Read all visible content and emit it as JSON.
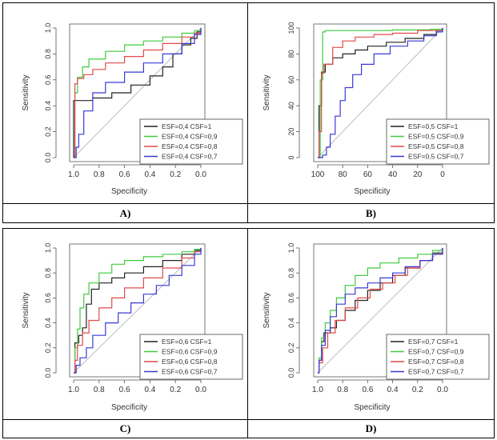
{
  "panels": [
    {
      "caption": "A)"
    },
    {
      "caption": "B)"
    },
    {
      "caption": "C)"
    },
    {
      "caption": "D)"
    }
  ],
  "colors": {
    "black": "#222222",
    "green": "#3fcc3f",
    "red": "#e24a4a",
    "blue": "#3a3ad6",
    "diagonal": "#bdbdbd"
  },
  "chart_data": [
    {
      "type": "line",
      "title": "",
      "xlabel": "Specificity",
      "ylabel": "Sensitivity",
      "xlim": [
        1.0,
        0.0
      ],
      "ylim": [
        0.0,
        1.0
      ],
      "xticks": [
        "1.0",
        "0.8",
        "0.6",
        "0.4",
        "0.2",
        "0.0"
      ],
      "yticks": [
        "0.0",
        "0.2",
        "0.4",
        "0.6",
        "0.8",
        "1.0"
      ],
      "legend_position": "bottom-right",
      "series": [
        {
          "name": "ESF=0,4 CSF=1",
          "color": "#222222",
          "points": [
            [
              1.0,
              0.0
            ],
            [
              1.0,
              0.44
            ],
            [
              0.9,
              0.44
            ],
            [
              0.85,
              0.46
            ],
            [
              0.7,
              0.5
            ],
            [
              0.55,
              0.56
            ],
            [
              0.4,
              0.63
            ],
            [
              0.3,
              0.7
            ],
            [
              0.22,
              0.8
            ],
            [
              0.15,
              0.87
            ],
            [
              0.08,
              0.92
            ],
            [
              0.03,
              0.97
            ],
            [
              0.0,
              1.0
            ]
          ]
        },
        {
          "name": "ESF=0,4 CSF=0,9",
          "color": "#3fcc3f",
          "points": [
            [
              1.0,
              0.0
            ],
            [
              0.99,
              0.5
            ],
            [
              0.97,
              0.62
            ],
            [
              0.93,
              0.7
            ],
            [
              0.88,
              0.76
            ],
            [
              0.75,
              0.82
            ],
            [
              0.6,
              0.87
            ],
            [
              0.45,
              0.9
            ],
            [
              0.3,
              0.93
            ],
            [
              0.15,
              0.96
            ],
            [
              0.05,
              0.98
            ],
            [
              0.0,
              1.0
            ]
          ]
        },
        {
          "name": "ESF=0,4 CSF=0,8",
          "color": "#e24a4a",
          "points": [
            [
              1.0,
              0.0
            ],
            [
              0.99,
              0.57
            ],
            [
              0.97,
              0.61
            ],
            [
              0.92,
              0.64
            ],
            [
              0.85,
              0.68
            ],
            [
              0.75,
              0.73
            ],
            [
              0.6,
              0.78
            ],
            [
              0.45,
              0.83
            ],
            [
              0.3,
              0.88
            ],
            [
              0.15,
              0.93
            ],
            [
              0.05,
              0.96
            ],
            [
              0.0,
              1.0
            ]
          ]
        },
        {
          "name": "ESF=0,4 CSF=0,7",
          "color": "#3a3ad6",
          "points": [
            [
              1.0,
              0.0
            ],
            [
              0.98,
              0.08
            ],
            [
              0.96,
              0.18
            ],
            [
              0.92,
              0.36
            ],
            [
              0.85,
              0.5
            ],
            [
              0.75,
              0.58
            ],
            [
              0.6,
              0.66
            ],
            [
              0.45,
              0.73
            ],
            [
              0.3,
              0.8
            ],
            [
              0.15,
              0.88
            ],
            [
              0.05,
              0.95
            ],
            [
              0.0,
              1.0
            ]
          ]
        }
      ]
    },
    {
      "type": "line",
      "title": "",
      "xlabel": "Specificity",
      "ylabel": "Sensitivity",
      "xlim": [
        100,
        0
      ],
      "ylim": [
        0,
        100
      ],
      "xticks": [
        "100",
        "80",
        "60",
        "40",
        "20",
        "0"
      ],
      "yticks": [
        "0",
        "20",
        "40",
        "60",
        "80",
        "100"
      ],
      "legend_position": "bottom-right",
      "series": [
        {
          "name": "ESF=0,5 CSF=1",
          "color": "#222222",
          "points": [
            [
              100,
              0
            ],
            [
              99,
              40
            ],
            [
              97,
              66
            ],
            [
              94,
              72
            ],
            [
              88,
              77
            ],
            [
              80,
              80
            ],
            [
              70,
              83
            ],
            [
              60,
              86
            ],
            [
              45,
              89
            ],
            [
              30,
              92
            ],
            [
              15,
              95
            ],
            [
              5,
              98
            ],
            [
              0,
              100
            ]
          ]
        },
        {
          "name": "ESF=0,5 CSF=0,9",
          "color": "#3fcc3f",
          "points": [
            [
              100,
              0
            ],
            [
              98,
              60
            ],
            [
              96,
              97
            ],
            [
              94,
              98
            ],
            [
              70,
              98
            ],
            [
              40,
              98.5
            ],
            [
              10,
              99
            ],
            [
              0,
              100
            ]
          ]
        },
        {
          "name": "ESF=0,5 CSF=0,8",
          "color": "#e24a4a",
          "points": [
            [
              100,
              0
            ],
            [
              99,
              20
            ],
            [
              97,
              65
            ],
            [
              95,
              72
            ],
            [
              88,
              85
            ],
            [
              80,
              90
            ],
            [
              70,
              93
            ],
            [
              55,
              95
            ],
            [
              40,
              96
            ],
            [
              20,
              98
            ],
            [
              0,
              100
            ]
          ]
        },
        {
          "name": "ESF=0,5 CSF=0,7",
          "color": "#3a3ad6",
          "points": [
            [
              100,
              0
            ],
            [
              96,
              2
            ],
            [
              93,
              8
            ],
            [
              90,
              18
            ],
            [
              86,
              32
            ],
            [
              82,
              44
            ],
            [
              78,
              54
            ],
            [
              72,
              64
            ],
            [
              65,
              72
            ],
            [
              55,
              80
            ],
            [
              42,
              86
            ],
            [
              28,
              90
            ],
            [
              15,
              94
            ],
            [
              5,
              97
            ],
            [
              0,
              100
            ]
          ]
        }
      ]
    },
    {
      "type": "line",
      "title": "",
      "xlabel": "Specificity",
      "ylabel": "Sensitivity",
      "xlim": [
        1.0,
        0.0
      ],
      "ylim": [
        0.0,
        1.0
      ],
      "xticks": [
        "1.0",
        "0.8",
        "0.6",
        "0.4",
        "0.2",
        "0.0"
      ],
      "yticks": [
        "0.0",
        "0.2",
        "0.4",
        "0.6",
        "0.8",
        "1.0"
      ],
      "legend_position": "bottom-right",
      "series": [
        {
          "name": "ESF=0,6 CSF=1",
          "color": "#222222",
          "points": [
            [
              1.0,
              0.0
            ],
            [
              0.99,
              0.24
            ],
            [
              0.96,
              0.3
            ],
            [
              0.93,
              0.36
            ],
            [
              0.9,
              0.55
            ],
            [
              0.86,
              0.67
            ],
            [
              0.8,
              0.72
            ],
            [
              0.7,
              0.76
            ],
            [
              0.6,
              0.8
            ],
            [
              0.45,
              0.85
            ],
            [
              0.3,
              0.9
            ],
            [
              0.15,
              0.95
            ],
            [
              0.05,
              0.98
            ],
            [
              0.0,
              1.0
            ]
          ]
        },
        {
          "name": "ESF=0,6 CSF=0,9",
          "color": "#3fcc3f",
          "points": [
            [
              1.0,
              0.0
            ],
            [
              0.99,
              0.2
            ],
            [
              0.97,
              0.35
            ],
            [
              0.95,
              0.52
            ],
            [
              0.92,
              0.63
            ],
            [
              0.88,
              0.72
            ],
            [
              0.8,
              0.8
            ],
            [
              0.7,
              0.87
            ],
            [
              0.6,
              0.9
            ],
            [
              0.45,
              0.93
            ],
            [
              0.3,
              0.95
            ],
            [
              0.15,
              0.97
            ],
            [
              0.05,
              0.99
            ],
            [
              0.0,
              1.0
            ]
          ]
        },
        {
          "name": "ESF=0,6 CSF=0,8",
          "color": "#e24a4a",
          "points": [
            [
              1.0,
              0.0
            ],
            [
              0.99,
              0.1
            ],
            [
              0.97,
              0.22
            ],
            [
              0.93,
              0.32
            ],
            [
              0.88,
              0.42
            ],
            [
              0.8,
              0.52
            ],
            [
              0.7,
              0.6
            ],
            [
              0.6,
              0.68
            ],
            [
              0.45,
              0.76
            ],
            [
              0.3,
              0.84
            ],
            [
              0.15,
              0.92
            ],
            [
              0.05,
              0.97
            ],
            [
              0.0,
              1.0
            ]
          ]
        },
        {
          "name": "ESF=0,6 CSF=0,7",
          "color": "#3a3ad6",
          "points": [
            [
              1.0,
              0.0
            ],
            [
              0.98,
              0.06
            ],
            [
              0.95,
              0.12
            ],
            [
              0.9,
              0.2
            ],
            [
              0.85,
              0.3
            ],
            [
              0.75,
              0.4
            ],
            [
              0.65,
              0.48
            ],
            [
              0.55,
              0.56
            ],
            [
              0.45,
              0.63
            ],
            [
              0.35,
              0.7
            ],
            [
              0.25,
              0.78
            ],
            [
              0.15,
              0.86
            ],
            [
              0.05,
              0.95
            ],
            [
              0.0,
              1.0
            ]
          ]
        }
      ]
    },
    {
      "type": "line",
      "title": "",
      "xlabel": "Specificity",
      "ylabel": "Sensitivity",
      "xlim": [
        1.0,
        0.0
      ],
      "ylim": [
        0.0,
        1.0
      ],
      "xticks": [
        "1.0",
        "0.8",
        "0.6",
        "0.4",
        "0.2",
        "0.0"
      ],
      "yticks": [
        "0.0",
        "0.2",
        "0.4",
        "0.6",
        "0.8",
        "1.0"
      ],
      "legend_position": "bottom-right",
      "series": [
        {
          "name": "ESF=0,7 CSF=1",
          "color": "#222222",
          "points": [
            [
              1.0,
              0.0
            ],
            [
              0.99,
              0.1
            ],
            [
              0.97,
              0.25
            ],
            [
              0.95,
              0.32
            ],
            [
              0.9,
              0.36
            ],
            [
              0.85,
              0.42
            ],
            [
              0.78,
              0.5
            ],
            [
              0.7,
              0.58
            ],
            [
              0.6,
              0.66
            ],
            [
              0.5,
              0.72
            ],
            [
              0.4,
              0.78
            ],
            [
              0.3,
              0.84
            ],
            [
              0.18,
              0.9
            ],
            [
              0.08,
              0.96
            ],
            [
              0.0,
              1.0
            ]
          ]
        },
        {
          "name": "ESF=0,7 CSF=0,9",
          "color": "#3fcc3f",
          "points": [
            [
              1.0,
              0.0
            ],
            [
              0.99,
              0.12
            ],
            [
              0.97,
              0.28
            ],
            [
              0.94,
              0.4
            ],
            [
              0.9,
              0.5
            ],
            [
              0.85,
              0.6
            ],
            [
              0.78,
              0.7
            ],
            [
              0.7,
              0.78
            ],
            [
              0.6,
              0.84
            ],
            [
              0.5,
              0.88
            ],
            [
              0.35,
              0.92
            ],
            [
              0.2,
              0.95
            ],
            [
              0.08,
              0.98
            ],
            [
              0.0,
              1.0
            ]
          ]
        },
        {
          "name": "ESF=0,7 CSF=0,8",
          "color": "#e24a4a",
          "points": [
            [
              1.0,
              0.0
            ],
            [
              0.99,
              0.08
            ],
            [
              0.96,
              0.2
            ],
            [
              0.92,
              0.32
            ],
            [
              0.86,
              0.42
            ],
            [
              0.78,
              0.52
            ],
            [
              0.68,
              0.6
            ],
            [
              0.58,
              0.67
            ],
            [
              0.48,
              0.72
            ],
            [
              0.38,
              0.78
            ],
            [
              0.28,
              0.84
            ],
            [
              0.18,
              0.9
            ],
            [
              0.08,
              0.95
            ],
            [
              0.0,
              1.0
            ]
          ]
        },
        {
          "name": "ESF=0,7 CSF=0,7",
          "color": "#3a3ad6",
          "points": [
            [
              1.0,
              0.0
            ],
            [
              0.99,
              0.1
            ],
            [
              0.97,
              0.22
            ],
            [
              0.94,
              0.34
            ],
            [
              0.9,
              0.45
            ],
            [
              0.85,
              0.55
            ],
            [
              0.78,
              0.63
            ],
            [
              0.7,
              0.68
            ],
            [
              0.6,
              0.72
            ],
            [
              0.5,
              0.76
            ],
            [
              0.4,
              0.8
            ],
            [
              0.3,
              0.85
            ],
            [
              0.18,
              0.9
            ],
            [
              0.08,
              0.95
            ],
            [
              0.0,
              1.0
            ]
          ]
        }
      ]
    }
  ]
}
